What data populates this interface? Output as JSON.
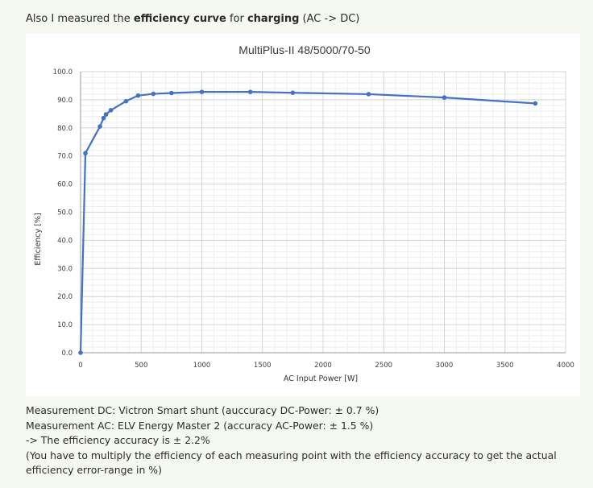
{
  "intro": {
    "prefix": "Also I measured the ",
    "bold1": "efficiency curve",
    "middle": " for ",
    "bold2": "charging",
    "suffix": " (AC -> DC)"
  },
  "notes": [
    "Measurement DC: Victron Smart shunt (auccuracy DC-Power: ± 0.7 %)",
    "Measurement AC: ELV Energy Master 2 (accuracy AC-Power: ± 1.5 %)",
    "-> The efficiency accuracy is ± 2.2%",
    "(You have to multiply the efficiency of each measuring point with the efficiency accuracy to get the actual efficiency error-range in %)"
  ],
  "chart_data": {
    "type": "scatter",
    "title": "MultiPlus-II 48/5000/70-50",
    "xlabel": "AC Input Power [W]",
    "ylabel": "Efficiency [%]",
    "xlim": [
      0,
      4000
    ],
    "ylim": [
      0,
      100
    ],
    "x_ticks": [
      "0",
      "500",
      "1000",
      "1500",
      "2000",
      "2500",
      "3000",
      "3500",
      "4000"
    ],
    "y_ticks": [
      "0.0",
      "10.0",
      "20.0",
      "30.0",
      "40.0",
      "50.0",
      "60.0",
      "70.0",
      "80.0",
      "90.0",
      "100.0"
    ],
    "grid": true,
    "line_color": "#4472c4",
    "series": [
      {
        "points": [
          [
            0,
            0
          ],
          [
            40,
            71
          ],
          [
            160,
            80.5
          ],
          [
            190,
            83.5
          ],
          [
            210,
            84.8
          ],
          [
            250,
            86.3
          ],
          [
            375,
            89.5
          ],
          [
            475,
            91.5
          ],
          [
            600,
            92.1
          ],
          [
            750,
            92.4
          ],
          [
            1000,
            92.8
          ],
          [
            1400,
            92.8
          ],
          [
            1750,
            92.5
          ],
          [
            2375,
            92.0
          ],
          [
            3000,
            90.8
          ],
          [
            3750,
            88.7
          ]
        ]
      }
    ]
  }
}
